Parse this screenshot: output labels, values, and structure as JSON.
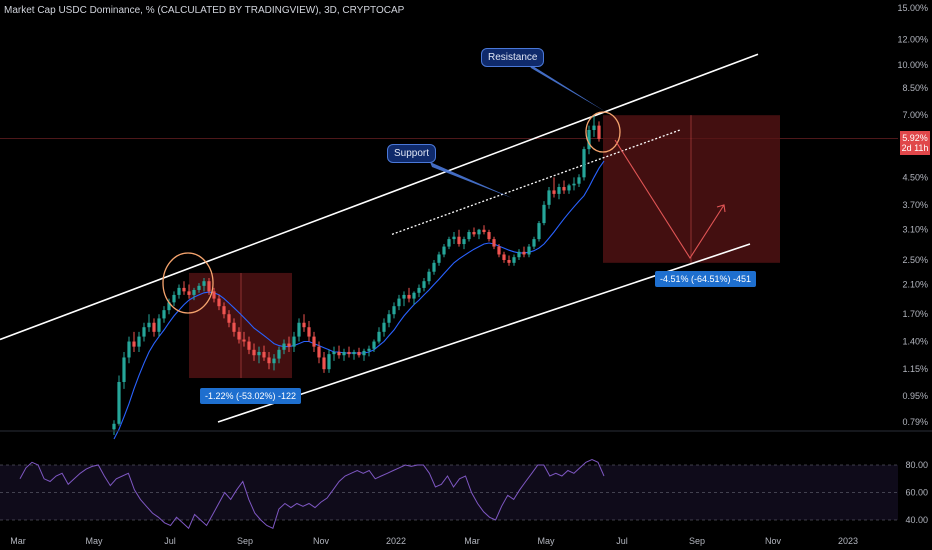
{
  "title": "Market Cap USDC Dominance, % (CALCULATED BY TRADINGVIEW), 3D, CRYPTOCAP",
  "annotations": {
    "resistance": "Resistance",
    "support": "Support",
    "measure_1": "-1.22% (-53.02%) -122",
    "measure_2": "-4.51% (-64.51%) -451"
  },
  "price_tag": {
    "value": "5.92%",
    "countdown": "2d 11h"
  },
  "colors": {
    "background": "#000000",
    "up_candle": "#26a69a",
    "down_candle": "#ef5350",
    "ma_line": "#2962ff",
    "rsi_line": "#7e57c2",
    "channel": "#ffffff",
    "zone_fill": "#5a1416",
    "circle": "#f5a46e",
    "projection": "#e05555"
  },
  "chart_data": [
    {
      "type": "candlestick",
      "title": "Market Cap USDC Dominance, % (CALCULATED BY TRADINGVIEW), 3D, CRYPTOCAP",
      "y_scale": "log",
      "y_ticks": [
        "15.00%",
        "12.00%",
        "10.00%",
        "8.50%",
        "7.00%",
        "5.92%",
        "4.50%",
        "3.70%",
        "3.10%",
        "2.50%",
        "2.10%",
        "1.70%",
        "1.40%",
        "1.15%",
        "0.95%",
        "0.79%"
      ],
      "x_ticks": [
        "Mar",
        "May",
        "Jul",
        "Sep",
        "Nov",
        "2022",
        "Mar",
        "May",
        "Jul",
        "Sep",
        "Nov",
        "2023"
      ],
      "series": [
        {
          "values": [
            [
              0.75,
              0.8,
              0.72,
              0.78
            ],
            [
              0.78,
              1.1,
              0.77,
              1.05
            ],
            [
              1.05,
              1.3,
              1.0,
              1.25
            ],
            [
              1.25,
              1.45,
              1.2,
              1.4
            ],
            [
              1.4,
              1.5,
              1.3,
              1.35
            ],
            [
              1.35,
              1.5,
              1.3,
              1.45
            ],
            [
              1.45,
              1.6,
              1.4,
              1.55
            ],
            [
              1.55,
              1.7,
              1.5,
              1.6
            ],
            [
              1.6,
              1.65,
              1.45,
              1.5
            ],
            [
              1.5,
              1.7,
              1.45,
              1.65
            ],
            [
              1.65,
              1.8,
              1.6,
              1.75
            ],
            [
              1.75,
              1.9,
              1.7,
              1.85
            ],
            [
              1.85,
              2.0,
              1.8,
              1.95
            ],
            [
              1.95,
              2.1,
              1.9,
              2.05
            ],
            [
              2.05,
              2.15,
              1.95,
              2.0
            ],
            [
              2.0,
              2.1,
              1.9,
              1.95
            ],
            [
              1.95,
              2.05,
              1.88,
              2.02
            ],
            [
              2.02,
              2.12,
              1.98,
              2.08
            ],
            [
              2.08,
              2.2,
              2.0,
              2.15
            ],
            [
              2.15,
              2.2,
              1.95,
              2.0
            ],
            [
              2.0,
              2.05,
              1.85,
              1.9
            ],
            [
              1.9,
              1.95,
              1.75,
              1.8
            ],
            [
              1.8,
              1.85,
              1.65,
              1.7
            ],
            [
              1.7,
              1.75,
              1.55,
              1.6
            ],
            [
              1.6,
              1.65,
              1.45,
              1.5
            ],
            [
              1.5,
              1.55,
              1.38,
              1.42
            ],
            [
              1.42,
              1.5,
              1.35,
              1.4
            ],
            [
              1.4,
              1.45,
              1.28,
              1.32
            ],
            [
              1.32,
              1.38,
              1.22,
              1.27
            ],
            [
              1.27,
              1.35,
              1.2,
              1.3
            ],
            [
              1.3,
              1.36,
              1.22,
              1.25
            ],
            [
              1.25,
              1.3,
              1.15,
              1.2
            ],
            [
              1.2,
              1.28,
              1.14,
              1.24
            ],
            [
              1.24,
              1.35,
              1.2,
              1.32
            ],
            [
              1.32,
              1.42,
              1.28,
              1.38
            ],
            [
              1.38,
              1.45,
              1.3,
              1.35
            ],
            [
              1.35,
              1.5,
              1.3,
              1.45
            ],
            [
              1.45,
              1.65,
              1.4,
              1.6
            ],
            [
              1.6,
              1.7,
              1.5,
              1.55
            ],
            [
              1.55,
              1.62,
              1.4,
              1.45
            ],
            [
              1.45,
              1.5,
              1.3,
              1.35
            ],
            [
              1.35,
              1.4,
              1.2,
              1.25
            ],
            [
              1.25,
              1.3,
              1.12,
              1.15
            ],
            [
              1.15,
              1.32,
              1.12,
              1.28
            ],
            [
              1.28,
              1.35,
              1.22,
              1.3
            ],
            [
              1.3,
              1.36,
              1.24,
              1.27
            ],
            [
              1.27,
              1.33,
              1.22,
              1.3
            ],
            [
              1.3,
              1.35,
              1.25,
              1.28
            ],
            [
              1.28,
              1.32,
              1.23,
              1.3
            ],
            [
              1.3,
              1.34,
              1.25,
              1.27
            ],
            [
              1.27,
              1.33,
              1.22,
              1.31
            ],
            [
              1.31,
              1.36,
              1.26,
              1.33
            ],
            [
              1.33,
              1.42,
              1.3,
              1.4
            ],
            [
              1.4,
              1.55,
              1.38,
              1.5
            ],
            [
              1.5,
              1.65,
              1.45,
              1.6
            ],
            [
              1.6,
              1.75,
              1.55,
              1.7
            ],
            [
              1.7,
              1.85,
              1.65,
              1.8
            ],
            [
              1.8,
              1.95,
              1.75,
              1.9
            ],
            [
              1.9,
              2.0,
              1.8,
              1.95
            ],
            [
              1.95,
              2.05,
              1.85,
              1.9
            ],
            [
              1.9,
              2.0,
              1.82,
              1.98
            ],
            [
              1.98,
              2.1,
              1.92,
              2.05
            ],
            [
              2.05,
              2.2,
              2.0,
              2.15
            ],
            [
              2.15,
              2.35,
              2.1,
              2.3
            ],
            [
              2.3,
              2.5,
              2.25,
              2.45
            ],
            [
              2.45,
              2.65,
              2.4,
              2.6
            ],
            [
              2.6,
              2.8,
              2.55,
              2.75
            ],
            [
              2.75,
              2.95,
              2.7,
              2.9
            ],
            [
              2.9,
              3.05,
              2.8,
              2.95
            ],
            [
              2.95,
              3.1,
              2.75,
              2.8
            ],
            [
              2.8,
              2.95,
              2.7,
              2.9
            ],
            [
              2.9,
              3.1,
              2.85,
              3.05
            ],
            [
              3.05,
              3.15,
              2.95,
              3.0
            ],
            [
              3.0,
              3.12,
              2.9,
              3.1
            ],
            [
              3.1,
              3.2,
              3.0,
              3.05
            ],
            [
              3.05,
              3.1,
              2.85,
              2.9
            ],
            [
              2.9,
              2.95,
              2.7,
              2.75
            ],
            [
              2.75,
              2.8,
              2.55,
              2.6
            ],
            [
              2.6,
              2.65,
              2.45,
              2.5
            ],
            [
              2.5,
              2.58,
              2.4,
              2.45
            ],
            [
              2.45,
              2.6,
              2.4,
              2.55
            ],
            [
              2.55,
              2.7,
              2.5,
              2.65
            ],
            [
              2.65,
              2.75,
              2.55,
              2.6
            ],
            [
              2.6,
              2.8,
              2.55,
              2.75
            ],
            [
              2.75,
              2.95,
              2.7,
              2.9
            ],
            [
              2.9,
              3.3,
              2.85,
              3.25
            ],
            [
              3.25,
              3.8,
              3.2,
              3.7
            ],
            [
              3.7,
              4.2,
              3.6,
              4.1
            ],
            [
              4.1,
              4.5,
              3.9,
              4.0
            ],
            [
              4.0,
              4.3,
              3.85,
              4.2
            ],
            [
              4.2,
              4.4,
              4.0,
              4.1
            ],
            [
              4.1,
              4.3,
              4.0,
              4.25
            ],
            [
              4.25,
              4.5,
              4.1,
              4.3
            ],
            [
              4.3,
              4.6,
              4.2,
              4.5
            ],
            [
              4.5,
              5.6,
              4.4,
              5.5
            ],
            [
              5.5,
              6.5,
              5.3,
              6.3
            ],
            [
              6.3,
              7.0,
              6.0,
              6.5
            ],
            [
              6.5,
              6.7,
              5.8,
              5.92
            ]
          ]
        }
      ],
      "moving_average": [
        0.7,
        0.75,
        0.82,
        0.9,
        1.0,
        1.1,
        1.2,
        1.3,
        1.38,
        1.45,
        1.52,
        1.6,
        1.68,
        1.75,
        1.82,
        1.88,
        1.92,
        1.95,
        1.98,
        1.99,
        1.98,
        1.95,
        1.9,
        1.84,
        1.78,
        1.72,
        1.66,
        1.6,
        1.54,
        1.5,
        1.46,
        1.42,
        1.38,
        1.36,
        1.35,
        1.35,
        1.36,
        1.38,
        1.4,
        1.4,
        1.38,
        1.36,
        1.34,
        1.32,
        1.3,
        1.3,
        1.29,
        1.29,
        1.29,
        1.29,
        1.29,
        1.3,
        1.32,
        1.36,
        1.4,
        1.46,
        1.52,
        1.6,
        1.68,
        1.75,
        1.82,
        1.88,
        1.95,
        2.02,
        2.1,
        2.18,
        2.27,
        2.36,
        2.45,
        2.52,
        2.58,
        2.64,
        2.7,
        2.75,
        2.8,
        2.82,
        2.8,
        2.76,
        2.72,
        2.68,
        2.65,
        2.63,
        2.63,
        2.64,
        2.67,
        2.72,
        2.8,
        2.92,
        3.05,
        3.2,
        3.35,
        3.5,
        3.65,
        3.8,
        3.95,
        4.2,
        4.5,
        4.8,
        5.05
      ],
      "rsi_levels": [
        "80.00",
        "60.00",
        "40.00"
      ],
      "rsi": [
        70,
        78,
        82,
        80,
        70,
        68,
        72,
        74,
        66,
        70,
        74,
        77,
        79,
        80,
        72,
        65,
        70,
        72,
        74,
        62,
        55,
        50,
        45,
        42,
        38,
        36,
        42,
        38,
        34,
        44,
        40,
        36,
        44,
        52,
        60,
        55,
        62,
        68,
        55,
        45,
        40,
        36,
        34,
        48,
        52,
        49,
        52,
        50,
        52,
        49,
        53,
        56,
        62,
        68,
        72,
        74,
        76,
        74,
        76,
        70,
        72,
        74,
        76,
        78,
        80,
        79,
        80,
        80,
        74,
        64,
        66,
        72,
        64,
        70,
        72,
        60,
        52,
        46,
        42,
        40,
        50,
        58,
        55,
        62,
        68,
        74,
        80,
        80,
        72,
        74,
        72,
        76,
        74,
        78,
        82,
        84,
        82,
        72
      ]
    }
  ]
}
